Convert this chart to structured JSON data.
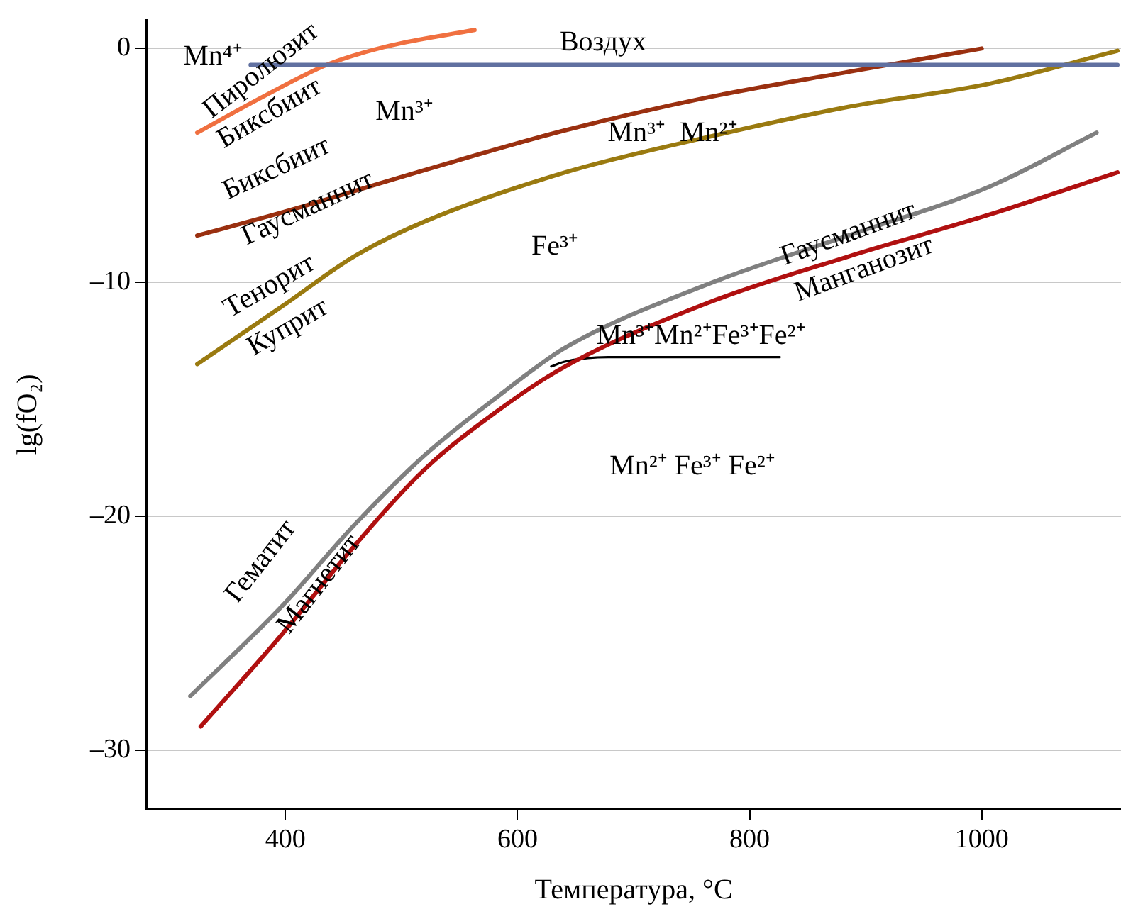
{
  "chart_data": {
    "type": "line",
    "xlabel": "Температура, °C",
    "ylabel": "lg(fO₂)",
    "xlim": [
      280,
      1120
    ],
    "ylim": [
      -32.5,
      1.2
    ],
    "xticks": [
      400,
      600,
      800,
      1000
    ],
    "yticks": [
      {
        "value": -30,
        "label": "–30"
      },
      {
        "value": -20,
        "label": "–20"
      },
      {
        "value": -10,
        "label": "–10"
      },
      {
        "value": 0,
        "label": "0"
      }
    ],
    "grid": "y",
    "legend": false,
    "marker": "none",
    "line_style": "solid",
    "series": [
      {
        "color": "#6070a0",
        "x": [
          370,
          1117
        ],
        "values": [
          -0.7,
          -0.7
        ]
      },
      {
        "color": "#f07040",
        "x": [
          324,
          383,
          437,
          490,
          563
        ],
        "values": [
          -3.6,
          -2.0,
          -0.67,
          0.12,
          0.79
        ]
      },
      {
        "color": "#9a3010",
        "x": [
          324,
          398,
          520,
          641,
          763,
          885,
          1000
        ],
        "values": [
          -8.0,
          -7.0,
          -5.2,
          -3.5,
          -2.1,
          -1.0,
          0
        ]
      },
      {
        "color": "#9a7a10",
        "x": [
          324,
          398,
          459,
          520,
          641,
          763,
          885,
          1007,
          1117
        ],
        "values": [
          -13.5,
          -11,
          -8.9,
          -7.4,
          -5.3,
          -3.8,
          -2.5,
          -1.5,
          -0.1
        ]
      },
      {
        "color": "#808080",
        "x": [
          318,
          398,
          459,
          520,
          580,
          641,
          763,
          885,
          1007,
          1099
        ],
        "values": [
          -27.7,
          -23.8,
          -20.4,
          -17.4,
          -15.0,
          -12.8,
          -10.1,
          -8.0,
          -5.9,
          -3.6
        ]
      },
      {
        "color": "#b01010",
        "x": [
          327,
          398,
          459,
          520,
          580,
          641,
          763,
          885,
          1007,
          1117
        ],
        "values": [
          -29.0,
          -25,
          -21.3,
          -18,
          -15.6,
          -13.6,
          -10.9,
          -8.9,
          -7.1,
          -5.3
        ]
      },
      {
        "color": "#000000",
        "x": [
          629,
          640,
          678,
          826
        ],
        "values": [
          -13.6,
          -13.4,
          -13.2,
          -13.2
        ]
      }
    ],
    "annotations": [
      "Mn⁴⁺",
      "Воздух",
      "Пиролюзит",
      "Биксбиит",
      "Mn³⁺",
      "Mn³⁺  Mn²⁺",
      "Биксбиит",
      "Гаусманнит",
      "Fe³⁺",
      "Тенорит",
      "Куприт",
      "Гаусманнит",
      "Манганозит",
      "Mn³⁺Mn²⁺Fe³⁺Fe²⁺",
      "Mn²⁺ Fe³⁺ Fe²⁺",
      "Гематит",
      "Магнетит"
    ]
  }
}
